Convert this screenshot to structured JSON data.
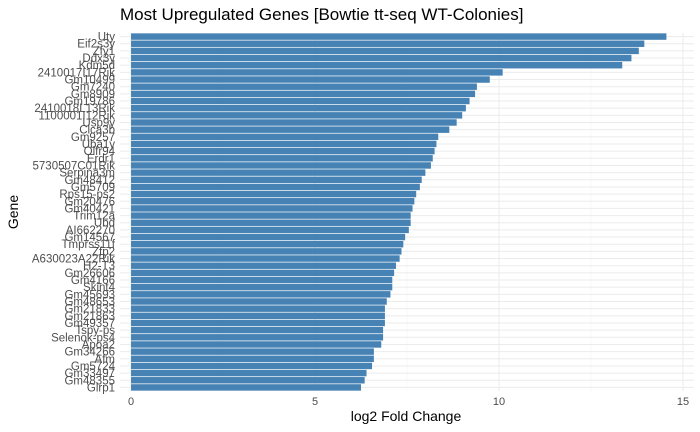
{
  "chart_data": {
    "type": "bar",
    "orientation": "horizontal",
    "title": "Most Upregulated Genes [Bowtie tt-seq WT-Colonies]",
    "xlabel": "log2 Fold Change",
    "ylabel": "Gene",
    "xlim": [
      -0.3,
      15.3
    ],
    "xticks": [
      0,
      5,
      10,
      15
    ],
    "grid": true,
    "bar_color": "#4682B4",
    "categories": [
      "Uty",
      "Eif2s3y",
      "Zfy1",
      "Ddx3y",
      "Kdm5d",
      "2410017I17Rik",
      "Gm10499",
      "Gm7240",
      "Gm8909",
      "Gm19786",
      "2410018L13Rik",
      "1100001I12Rik",
      "Usp9y",
      "Clca3b",
      "Gm9257",
      "Uba1y",
      "Olfr94",
      "Erdr1",
      "5730507C01Rik",
      "Serpina3m",
      "Gm48412",
      "Gm5709",
      "Rps15-ps2",
      "Gm20476",
      "Gm40421",
      "Trim12a",
      "Ubd",
      "AI662270",
      "Gm14567",
      "Tmprss11f",
      "Zfp2",
      "A630023A22Rik",
      "H2-T3",
      "Gm26606",
      "Gm4166",
      "Skint4",
      "Gm45693",
      "Gm48653",
      "Gm21833",
      "Gm21863",
      "Gm49357",
      "Tspy-ps",
      "Selenok-ps4",
      "Apoa2",
      "Gm34266",
      "Afm",
      "Gm5724",
      "Gm33497",
      "Gm48355",
      "Glrp1"
    ],
    "values": [
      14.55,
      13.95,
      13.8,
      13.6,
      13.35,
      10.1,
      9.75,
      9.4,
      9.35,
      9.2,
      9.1,
      9.0,
      8.85,
      8.65,
      8.35,
      8.3,
      8.25,
      8.2,
      8.15,
      8.0,
      7.9,
      7.85,
      7.75,
      7.7,
      7.65,
      7.6,
      7.6,
      7.55,
      7.45,
      7.4,
      7.35,
      7.3,
      7.2,
      7.15,
      7.1,
      7.1,
      7.05,
      6.95,
      6.9,
      6.9,
      6.9,
      6.85,
      6.85,
      6.8,
      6.6,
      6.6,
      6.55,
      6.4,
      6.35,
      6.25
    ]
  }
}
